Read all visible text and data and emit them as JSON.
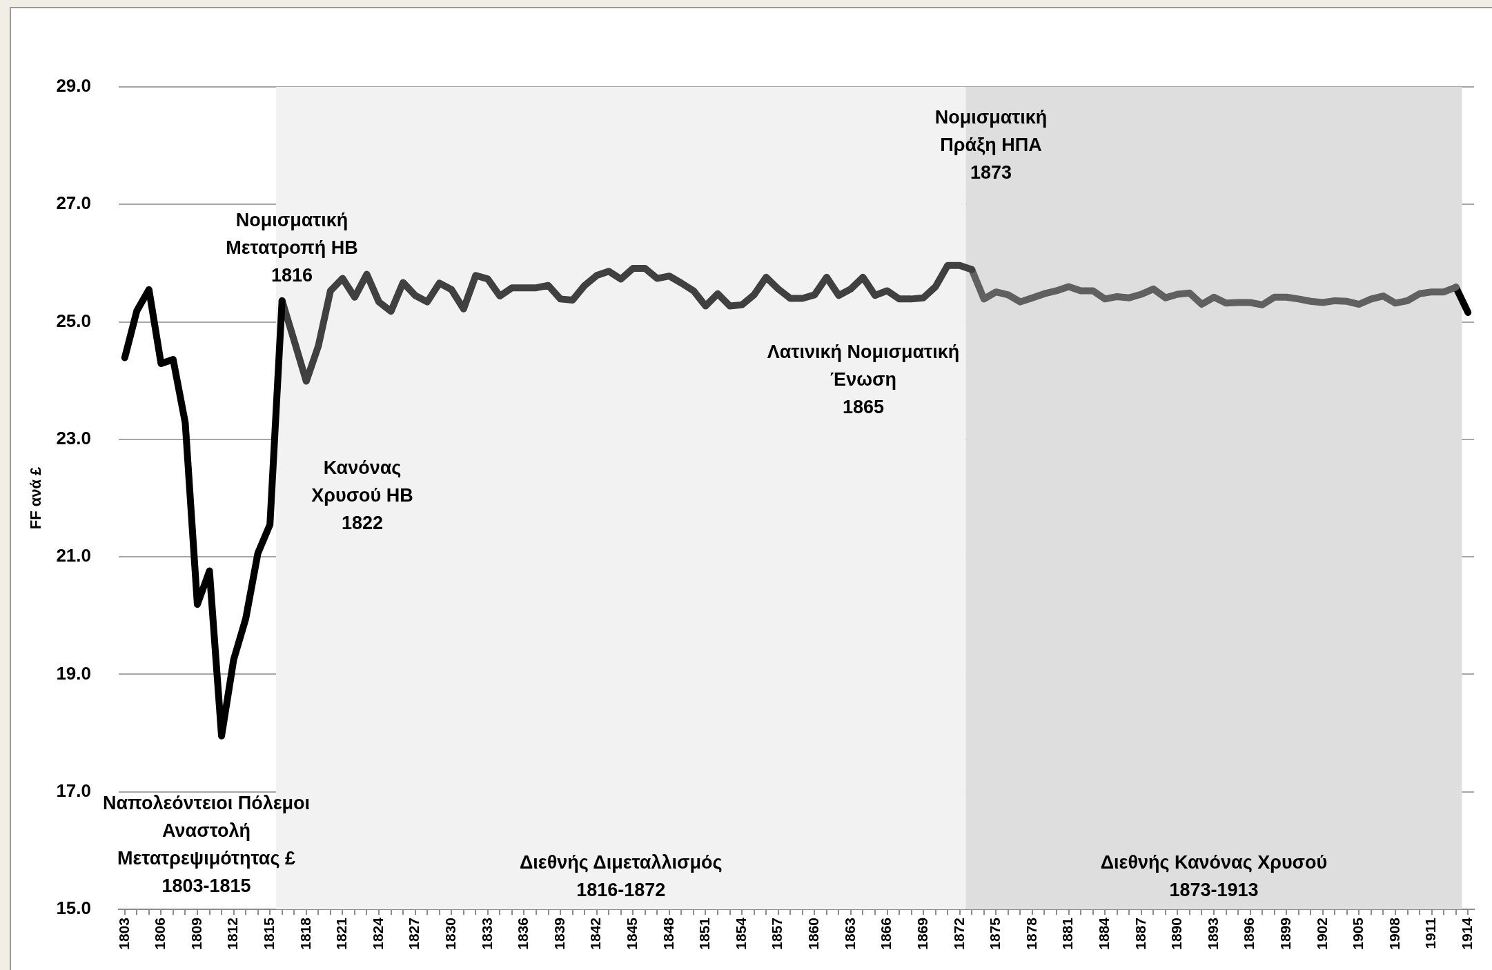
{
  "chart_data": {
    "type": "line",
    "ylabel": "FF ανά £",
    "xlim": [
      1802.5,
      1914.5
    ],
    "xticks": [
      1803,
      {
        "value": 1804,
        "label": null
      },
      {
        "value": 1805,
        "label": null
      },
      1806,
      {
        "value": 1807,
        "label": null
      },
      {
        "value": 1808,
        "label": null
      },
      1809,
      {
        "value": 1810,
        "label": null
      },
      {
        "value": 1811,
        "label": null
      },
      1812,
      {
        "value": 1813,
        "label": null
      },
      {
        "value": 1814,
        "label": null
      },
      1815,
      {
        "value": 1816,
        "label": null
      },
      {
        "value": 1817,
        "label": null
      },
      1818,
      {
        "value": 1819,
        "label": null
      },
      {
        "value": 1820,
        "label": null
      },
      1821,
      {
        "value": 1822,
        "label": null
      },
      {
        "value": 1823,
        "label": null
      },
      1824,
      {
        "value": 1825,
        "label": null
      },
      {
        "value": 1826,
        "label": null
      },
      1827,
      {
        "value": 1828,
        "label": null
      },
      {
        "value": 1829,
        "label": null
      },
      1830,
      {
        "value": 1831,
        "label": null
      },
      {
        "value": 1832,
        "label": null
      },
      1833,
      {
        "value": 1834,
        "label": null
      },
      {
        "value": 1835,
        "label": null
      },
      1836,
      {
        "value": 1837,
        "label": null
      },
      {
        "value": 1838,
        "label": null
      },
      1839,
      {
        "value": 1840,
        "label": null
      },
      {
        "value": 1841,
        "label": null
      },
      1842,
      {
        "value": 1843,
        "label": null
      },
      {
        "value": 1844,
        "label": null
      },
      1845,
      {
        "value": 1846,
        "label": null
      },
      {
        "value": 1847,
        "label": null
      },
      1848,
      {
        "value": 1849,
        "label": null
      },
      {
        "value": 1850,
        "label": null
      },
      1851,
      {
        "value": 1852,
        "label": null
      },
      {
        "value": 1853,
        "label": null
      },
      1854,
      {
        "value": 1855,
        "label": null
      },
      {
        "value": 1856,
        "label": null
      },
      1857,
      {
        "value": 1858,
        "label": null
      },
      {
        "value": 1859,
        "label": null
      },
      1860,
      {
        "value": 1861,
        "label": null
      },
      {
        "value": 1862,
        "label": null
      },
      1863,
      {
        "value": 1864,
        "label": null
      },
      {
        "value": 1865,
        "label": null
      },
      1866,
      {
        "value": 1867,
        "label": null
      },
      {
        "value": 1868,
        "label": null
      },
      1869,
      {
        "value": 1870,
        "label": null
      },
      {
        "value": 1871,
        "label": null
      },
      1872,
      {
        "value": 1873,
        "label": null
      },
      {
        "value": 1874,
        "label": null
      },
      1875,
      {
        "value": 1876,
        "label": null
      },
      {
        "value": 1877,
        "label": null
      },
      1878,
      {
        "value": 1879,
        "label": null
      },
      {
        "value": 1880,
        "label": null
      },
      1881,
      {
        "value": 1882,
        "label": null
      },
      {
        "value": 1883,
        "label": null
      },
      1884,
      {
        "value": 1885,
        "label": null
      },
      {
        "value": 1886,
        "label": null
      },
      1887,
      {
        "value": 1888,
        "label": null
      },
      {
        "value": 1889,
        "label": null
      },
      1890,
      {
        "value": 1891,
        "label": null
      },
      {
        "value": 1892,
        "label": null
      },
      1893,
      {
        "value": 1894,
        "label": null
      },
      {
        "value": 1895,
        "label": null
      },
      1896,
      {
        "value": 1897,
        "label": null
      },
      {
        "value": 1898,
        "label": null
      },
      1899,
      {
        "value": 1900,
        "label": null
      },
      {
        "value": 1901,
        "label": null
      },
      1902,
      {
        "value": 1903,
        "label": null
      },
      {
        "value": 1904,
        "label": null
      },
      1905,
      {
        "value": 1906,
        "label": null
      },
      {
        "value": 1907,
        "label": null
      },
      1908,
      {
        "value": 1909,
        "label": null
      },
      {
        "value": 1910,
        "label": null
      },
      1911,
      {
        "value": 1912,
        "label": null
      },
      {
        "value": 1913,
        "label": null
      },
      1914
    ],
    "ylim": [
      15,
      29
    ],
    "yticks": [
      {
        "value": 15,
        "label": "15.0"
      },
      {
        "value": 17,
        "label": "17.0"
      },
      {
        "value": 19,
        "label": "19.0"
      },
      {
        "value": 21,
        "label": "21.0"
      },
      {
        "value": 23,
        "label": "23.0"
      },
      {
        "value": 25,
        "label": "25.0"
      },
      {
        "value": 27,
        "label": "27.0"
      },
      {
        "value": 29,
        "label": "29.0"
      }
    ],
    "grid": "y",
    "legend": false,
    "series": [
      {
        "color": "#000000",
        "x": [
          1803,
          1804,
          1805,
          1806,
          1807,
          1808,
          1809,
          1810,
          1811,
          1812,
          1813,
          1814,
          1815,
          1816
        ],
        "values": [
          24.39,
          25.19,
          25.55,
          24.29,
          24.36,
          23.28,
          20.19,
          20.76,
          17.95,
          19.25,
          19.95,
          21.06,
          21.55,
          25.36
        ]
      },
      {
        "color": "#404040",
        "x": [
          1816,
          1817,
          1818,
          1819,
          1820,
          1821,
          1822,
          1823,
          1824,
          1825,
          1826,
          1827,
          1828,
          1829,
          1830,
          1831,
          1832,
          1833,
          1834,
          1835,
          1836,
          1837,
          1838,
          1839,
          1840,
          1841,
          1842,
          1843,
          1844,
          1845,
          1846,
          1847,
          1848,
          1849,
          1850,
          1851,
          1852,
          1853,
          1854,
          1855,
          1856,
          1857,
          1858,
          1859,
          1860,
          1861,
          1862,
          1863,
          1864,
          1865,
          1866,
          1867,
          1868,
          1869,
          1870,
          1871,
          1872,
          1873
        ],
        "values": [
          25.36,
          24.68,
          23.99,
          24.59,
          25.53,
          25.74,
          25.42,
          25.81,
          25.34,
          25.18,
          25.67,
          25.45,
          25.34,
          25.66,
          25.55,
          25.22,
          25.79,
          25.73,
          25.44,
          25.58,
          25.58,
          25.58,
          25.62,
          25.39,
          25.37,
          25.62,
          25.79,
          25.86,
          25.73,
          25.91,
          25.91,
          25.74,
          25.78,
          25.66,
          25.53,
          25.27,
          25.48,
          25.27,
          25.29,
          25.46,
          25.76,
          25.56,
          25.4,
          25.4,
          25.46,
          25.76,
          25.45,
          25.56,
          25.76,
          25.45,
          25.53,
          25.39,
          25.39,
          25.41,
          25.6,
          25.96,
          25.96,
          25.89
        ]
      },
      {
        "color": "#606060",
        "x": [
          1873,
          1874,
          1875,
          1876,
          1877,
          1878,
          1879,
          1880,
          1881,
          1882,
          1883,
          1884,
          1885,
          1886,
          1887,
          1888,
          1889,
          1890,
          1891,
          1892,
          1893,
          1894,
          1895,
          1896,
          1897,
          1898,
          1899,
          1900,
          1901,
          1902,
          1903,
          1904,
          1905,
          1906,
          1907,
          1908,
          1909,
          1910,
          1911,
          1912,
          1913
        ],
        "values": [
          25.89,
          25.39,
          25.51,
          25.46,
          25.34,
          25.41,
          25.48,
          25.53,
          25.6,
          25.53,
          25.53,
          25.39,
          25.43,
          25.41,
          25.47,
          25.56,
          25.41,
          25.47,
          25.49,
          25.3,
          25.42,
          25.32,
          25.33,
          25.33,
          25.29,
          25.42,
          25.42,
          25.39,
          25.35,
          25.33,
          25.36,
          25.35,
          25.3,
          25.39,
          25.44,
          25.32,
          25.36,
          25.48,
          25.51,
          25.51,
          25.59
        ]
      },
      {
        "color": "#000000",
        "x": [
          1913,
          1914
        ],
        "values": [
          25.59,
          25.16
        ]
      }
    ],
    "bands": [
      {
        "axis": "x",
        "from": 1815.5,
        "to": 1872.5,
        "label": "Διεθνής Διμεταλλισμός\n1816-1872",
        "color": "#f2f2f2"
      },
      {
        "axis": "x",
        "from": 1872.5,
        "to": 1913.5,
        "label": "Διεθνής Κανόνας Χρυσού\n1873-1913",
        "color": "#dedede"
      }
    ],
    "annotations": [
      "Νομισματική\nΜετατροπή ΗΒ\n1816",
      "Κανόνας\nΧρυσού ΗΒ\n1822",
      "Λατινική Νομισματική\nΈνωση\n1865",
      "Νομισματική\nΠράξη ΗΠΑ\n1873",
      "Ναπολεόντειοι Πόλεμοι\nΑναστολή\nΜετατρεψιμότητας £\n1803-1815"
    ]
  }
}
